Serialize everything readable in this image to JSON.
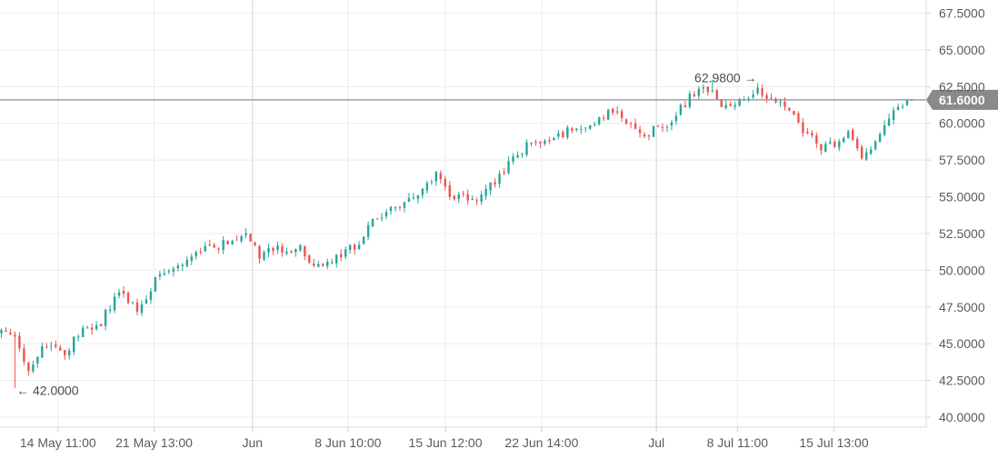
{
  "chart_data": {
    "type": "candlestick",
    "y_axis": {
      "min": 39.6,
      "max": 68.3,
      "ticks": [
        {
          "value": 40.0,
          "label": "40.0000"
        },
        {
          "value": 42.5,
          "label": "42.5000"
        },
        {
          "value": 45.0,
          "label": "45.0000"
        },
        {
          "value": 47.5,
          "label": "47.5000"
        },
        {
          "value": 50.0,
          "label": "50.0000"
        },
        {
          "value": 52.5,
          "label": "52.5000"
        },
        {
          "value": 55.0,
          "label": "55.0000"
        },
        {
          "value": 57.5,
          "label": "57.5000"
        },
        {
          "value": 60.0,
          "label": "60.0000"
        },
        {
          "value": 62.5,
          "label": "62.5000"
        },
        {
          "value": 65.0,
          "label": "65.0000"
        },
        {
          "value": 67.5,
          "label": "67.5000"
        }
      ]
    },
    "x_axis": {
      "ticks": [
        {
          "pos": 0.0626,
          "label": "14 May 11:00",
          "major": false
        },
        {
          "pos": 0.1664,
          "label": "21 May 13:00",
          "major": false
        },
        {
          "pos": 0.2726,
          "label": "Jun",
          "major": true
        },
        {
          "pos": 0.3757,
          "label": "8 Jun 10:00",
          "major": false
        },
        {
          "pos": 0.4809,
          "label": "15 Jun 12:00",
          "major": false
        },
        {
          "pos": 0.5848,
          "label": "22 Jun 14:00",
          "major": false
        },
        {
          "pos": 0.7087,
          "label": "Jul",
          "major": true
        },
        {
          "pos": 0.7962,
          "label": "8 Jul 11:00",
          "major": false
        },
        {
          "pos": 0.9004,
          "label": "15 Jul 13:00",
          "major": false
        }
      ]
    },
    "current_price": {
      "value": 61.6,
      "label": "61.6000"
    },
    "annotations": [
      {
        "type": "high",
        "value": 62.98,
        "label": "62.9800",
        "pos": 0.8239,
        "arrow": "→"
      },
      {
        "type": "low",
        "value": 42.0,
        "label": "42.0000",
        "pos": 0.0158,
        "arrow": "←"
      }
    ],
    "series_keypoints": [
      [
        0,
        45.8
      ],
      [
        4,
        45.0
      ],
      [
        6,
        43.0
      ],
      [
        9,
        44.8
      ],
      [
        14,
        44.5
      ],
      [
        18,
        46.0
      ],
      [
        22,
        46.5
      ],
      [
        26,
        48.5
      ],
      [
        30,
        47.5
      ],
      [
        34,
        49.2
      ],
      [
        38,
        50.0
      ],
      [
        42,
        51.0
      ],
      [
        46,
        51.5
      ],
      [
        50,
        51.8
      ],
      [
        54,
        52.5
      ],
      [
        57,
        51.0
      ],
      [
        62,
        51.5
      ],
      [
        66,
        51.5
      ],
      [
        70,
        50.2
      ],
      [
        74,
        51.0
      ],
      [
        78,
        51.5
      ],
      [
        82,
        53.5
      ],
      [
        84,
        53.8
      ],
      [
        88,
        54.5
      ],
      [
        93,
        55.5
      ],
      [
        96,
        56.5
      ],
      [
        99,
        55.2
      ],
      [
        103,
        55.0
      ],
      [
        105,
        54.5
      ],
      [
        110,
        56.5
      ],
      [
        114,
        58.0
      ],
      [
        117,
        58.7
      ],
      [
        122,
        59.2
      ],
      [
        127,
        59.6
      ],
      [
        132,
        60.3
      ],
      [
        135,
        60.8
      ],
      [
        139,
        60.0
      ],
      [
        142,
        59.2
      ],
      [
        147,
        60.0
      ],
      [
        152,
        61.8
      ],
      [
        155,
        62.7
      ],
      [
        158,
        61.5
      ],
      [
        163,
        61.3
      ],
      [
        167,
        62.3
      ],
      [
        170,
        61.8
      ],
      [
        174,
        61.2
      ],
      [
        177,
        59.7
      ],
      [
        181,
        58.5
      ],
      [
        184,
        58.6
      ],
      [
        187,
        59.3
      ],
      [
        190,
        57.8
      ],
      [
        193,
        58.5
      ],
      [
        196,
        60.5
      ],
      [
        199,
        61.5
      ],
      [
        201,
        61.6
      ]
    ],
    "n_candles": 202,
    "colors": {
      "up": "#26a69a",
      "down": "#ef5350",
      "grid": "#ececec",
      "axis_text": "#5b5b5b",
      "price_line": "#8c8c8c",
      "price_badge": "#8a8a8a",
      "price_badge_text": "#ffffff",
      "annotation_text": "#4a4a4a"
    }
  }
}
